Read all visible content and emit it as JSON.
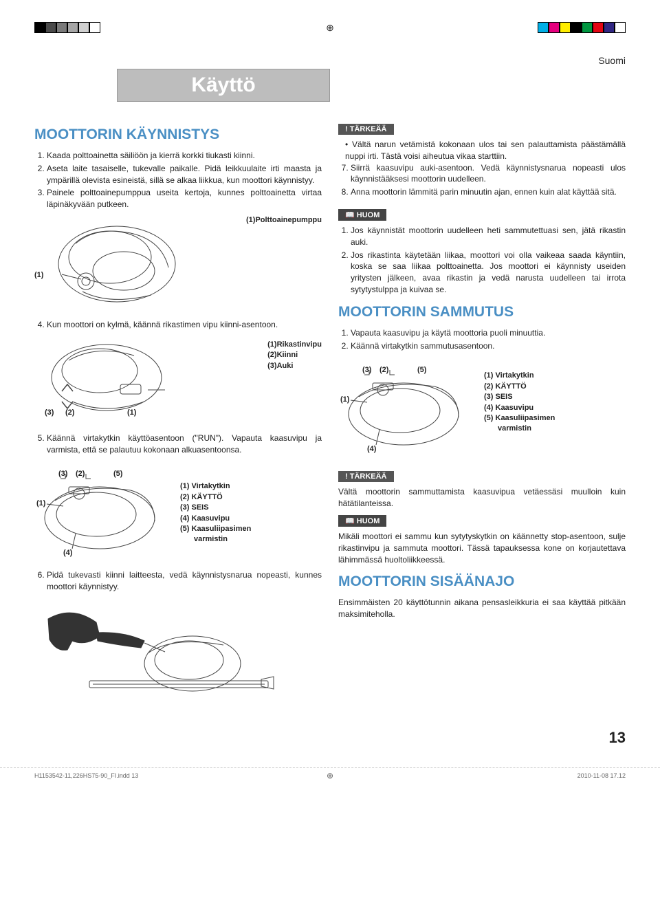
{
  "colorbar": {
    "left": [
      "#000000",
      "#4a4a4a",
      "#7a7a7a",
      "#a6a6a6",
      "#d0d0d0",
      "#ffffff"
    ],
    "right": [
      "#00aee5",
      "#e6007e",
      "#ffed00",
      "#000000",
      "#009640",
      "#e30613",
      "#312783",
      "#ffffff"
    ]
  },
  "lang": "Suomi",
  "banner": "Käyttö",
  "left": {
    "h_start": "MOOTTORIN KÄYNNISTYS",
    "steps1": [
      "Kaada polttoainetta säiliöön ja kierrä korkki tiukasti kiinni.",
      "Aseta laite tasaiselle, tukevalle paikalle. Pidä leikkuulaite irti maasta ja ympärillä olevista esineistä, sillä se alkaa liikkua, kun moottori käynnistyy.",
      "Painele polttoainepumppua useita kertoja, kunnes polttoainetta virtaa läpinäkyvään putkeen."
    ],
    "fig1_cap": "(1)Polttoainepumppu",
    "fig1_c1": "(1)",
    "step4": "Kun moottori on kylmä, käännä rikastimen vipu kiinni-asentoon.",
    "fig2_caps": [
      "(1)Rikastinvipu",
      "(2)Kiinni",
      "(3)Auki"
    ],
    "fig2_c1": "(1)",
    "fig2_c2": "(2)",
    "fig2_c3": "(3)",
    "step5": "Käännä virtakytkin käyttöasentoon (\"RUN\"). Vapauta kaasuvipu ja varmista, että se palautuu kokonaan alkuasentoonsa.",
    "fig3_parts": [
      "(1) Virtakytkin",
      "(2) KÄYTTÖ",
      "(3) SEIS",
      "(4) Kaasuvipu",
      "(5) Kaasuliipasimen"
    ],
    "fig3_parts_last": "varmistin",
    "fig3_c1": "(1)",
    "fig3_c2": "(2)",
    "fig3_c3": "(3)",
    "fig3_c4": "(4)",
    "fig3_c5": "(5)",
    "step6": "Pidä tukevasti kiinni laitteesta, vedä käynnistysnarua nopeasti, kunnes moottori käynnistyy."
  },
  "right": {
    "notice1": "! TÄRKEÄÄ",
    "imp1": [
      "Vältä narun vetämistä kokonaan ulos tai sen palauttamista päästämällä nuppi irti. Tästä voisi aiheutua vikaa starttiin."
    ],
    "steps7": [
      "Siirrä kaasuvipu auki-asentoon. Vedä käynnistysnarua nopeasti ulos käynnistääksesi moottorin uudelleen.",
      "Anna moottorin lämmitä parin minuutin ajan, ennen kuin alat käyttää sitä."
    ],
    "notice2": "📖 HUOM",
    "huom1": [
      "Jos käynnistät moottorin uudelleen heti sammutettuasi sen, jätä rikastin auki.",
      "Jos rikastinta käytetään liikaa, moottori voi olla vaikeaa saada käyntiin, koska se saa liikaa polttoainetta. Jos moottori ei käynnisty useiden yritysten jälkeen, avaa rikastin ja vedä narusta uudelleen tai irrota sytytystulppa ja kuivaa se."
    ],
    "h_stop": "MOOTTORIN SAMMUTUS",
    "stop_steps": [
      "Vapauta kaasuvipu ja käytä moottoria puoli minuuttia.",
      "Käännä virtakytkin sammutusasentoon."
    ],
    "fig4_parts": [
      "(1) Virtakytkin",
      "(2) KÄYTTÖ",
      "(3) SEIS",
      "(4) Kaasuvipu",
      "(5) Kaasuliipasimen"
    ],
    "fig4_parts_last": "varmistin",
    "fig4_c1": "(1)",
    "fig4_c2": "(2)",
    "fig4_c3": "(3)",
    "fig4_c4": "(4)",
    "fig4_c5": "(5)",
    "notice3": "! TÄRKEÄÄ",
    "imp2": "Vältä moottorin sammuttamista kaasuvipua vetäessäsi muulloin kuin hätätilanteissa.",
    "notice4": "📖 HUOM",
    "huom2": "Mikäli moottori ei sammu kun sytytyskytkin on käännetty stop-asentoon, sulje rikastinvipu ja sammuta moottori. Tässä tapauksessa kone on korjautettava lähimmässä huoltoliikkeessä.",
    "h_breakin": "MOOTTORIN SISÄÄNAJO",
    "breakin": "Ensimmäisten 20 käyttötunnin aikana pensasleikkuria ei saa käyttää pitkään maksimiteholla."
  },
  "pagenum": "13",
  "footer": {
    "file": "H1153542-11,226HS75-90_FI.indd   13",
    "date": "2010-11-08   17.12"
  }
}
